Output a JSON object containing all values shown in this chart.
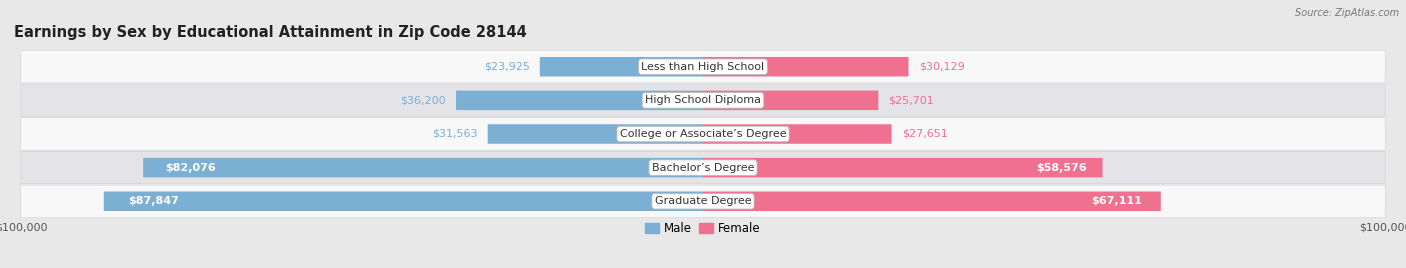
{
  "title": "Earnings by Sex by Educational Attainment in Zip Code 28144",
  "source": "Source: ZipAtlas.com",
  "categories": [
    "Less than High School",
    "High School Diploma",
    "College or Associate’s Degree",
    "Bachelor’s Degree",
    "Graduate Degree"
  ],
  "male_values": [
    23925,
    36200,
    31563,
    82076,
    87847
  ],
  "female_values": [
    30129,
    25701,
    27651,
    58576,
    67111
  ],
  "male_color": "#7bafd4",
  "female_color": "#f07090",
  "max_value": 100000,
  "bar_height": 0.58,
  "bg_color": "#e8e8e8",
  "row_colors": [
    "#f8f8f8",
    "#e4e4e8"
  ],
  "title_fontsize": 10.5,
  "label_fontsize": 8,
  "tick_fontsize": 8,
  "category_fontsize": 8,
  "large_threshold": 45000
}
